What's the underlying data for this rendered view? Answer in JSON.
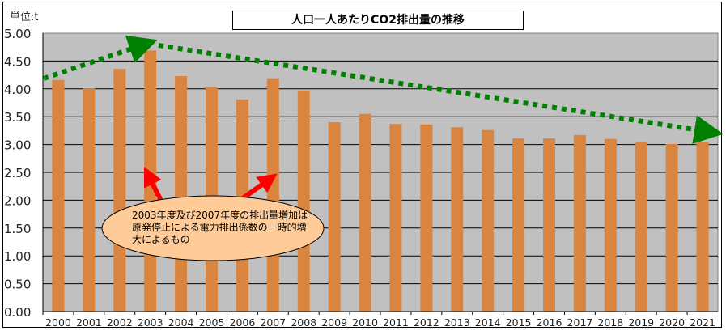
{
  "chart_data": {
    "type": "bar",
    "title": "人口一人あたりCO2排出量の推移",
    "unit_label": "単位:t",
    "xlabel": "",
    "ylabel": "",
    "ylim": [
      0,
      5
    ],
    "grid": true,
    "yticks": [
      "0.00",
      "0.50",
      "1.00",
      "1.50",
      "2.00",
      "2.50",
      "3.00",
      "3.50",
      "4.00",
      "4.50",
      "5.00"
    ],
    "categories": [
      "2000",
      "2001",
      "2002",
      "2003",
      "2004",
      "2005",
      "2006",
      "2007",
      "2008",
      "2009",
      "2010",
      "2011",
      "2012",
      "2013",
      "2014",
      "2015",
      "2016",
      "2017",
      "2018",
      "2019",
      "2020",
      "2021"
    ],
    "values": [
      4.16,
      4.01,
      4.36,
      4.69,
      4.23,
      4.03,
      3.81,
      4.19,
      3.97,
      3.4,
      3.55,
      3.37,
      3.36,
      3.31,
      3.26,
      3.11,
      3.11,
      3.17,
      3.1,
      3.04,
      3.01,
      3.04
    ],
    "bar_color": "#D98540",
    "plot_bg": "#C0C0C0",
    "annotation": "2003年度及び2007年度の排出量増加は原発停止による電力排出係数の一時的増大によるもの",
    "trend_color": "#008000",
    "highlight_arrow_color": "#FF0000"
  }
}
